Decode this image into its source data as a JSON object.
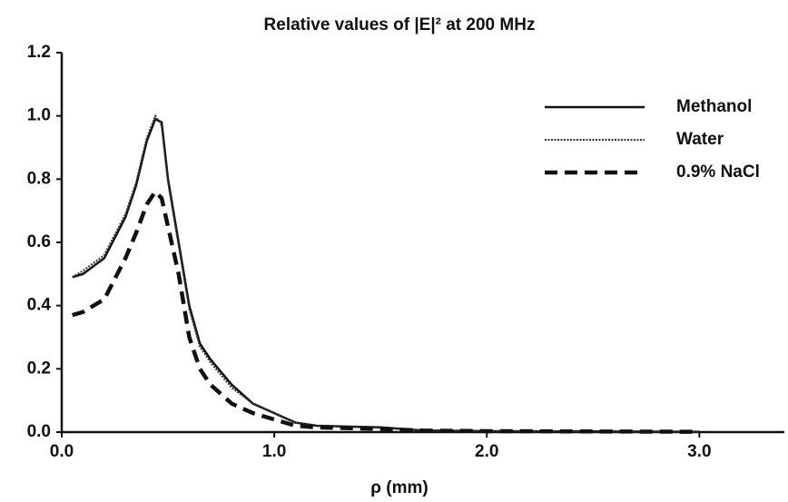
{
  "chart_data": {
    "type": "line",
    "title": "Relative values of |E|² at 200 MHz",
    "xlabel": "ρ (mm)",
    "x": [
      0.05,
      0.1,
      0.2,
      0.3,
      0.35,
      0.4,
      0.44,
      0.47,
      0.5,
      0.55,
      0.6,
      0.65,
      0.7,
      0.8,
      0.9,
      1.0,
      1.1,
      1.2,
      1.5,
      1.7,
      2.0,
      2.5,
      3.0
    ],
    "series": [
      {
        "name": "Methanol",
        "color": "#111111",
        "line_style": "solid",
        "values": [
          0.49,
          0.5,
          0.55,
          0.68,
          0.78,
          0.92,
          0.99,
          0.98,
          0.8,
          0.6,
          0.4,
          0.28,
          0.23,
          0.15,
          0.09,
          0.06,
          0.03,
          0.02,
          0.015,
          0.005,
          0.003,
          0.002,
          0.001
        ]
      },
      {
        "name": "Water",
        "color": "#333333",
        "line_style": "dotted",
        "values": [
          0.49,
          0.51,
          0.56,
          0.69,
          0.79,
          0.93,
          1.0,
          0.97,
          0.79,
          0.59,
          0.39,
          0.27,
          0.22,
          0.14,
          0.09,
          0.06,
          0.03,
          0.02,
          0.015,
          0.005,
          0.003,
          0.002,
          0.001
        ]
      },
      {
        "name": "0.9% NaCl",
        "color": "#111111",
        "line_style": "dashed",
        "values": [
          0.37,
          0.38,
          0.42,
          0.55,
          0.63,
          0.72,
          0.76,
          0.74,
          0.65,
          0.5,
          0.3,
          0.2,
          0.15,
          0.09,
          0.06,
          0.04,
          0.02,
          0.015,
          0.01,
          0.005,
          0.003,
          0.002,
          0.001
        ]
      }
    ],
    "xlim": [
      0,
      3.4
    ],
    "xticks": [
      {
        "value": 0,
        "label": "0.0"
      },
      {
        "value": 1,
        "label": "1.0"
      },
      {
        "value": 2,
        "label": "2.0"
      },
      {
        "value": 3,
        "label": "3.0"
      }
    ],
    "ylim": [
      0,
      1.2
    ],
    "yticks": [
      {
        "value": 0,
        "label": "0.0"
      },
      0.2,
      0.4,
      0.6,
      0.8,
      {
        "value": 1,
        "label": "1.0"
      },
      1.2
    ],
    "grid": false,
    "legend": "upper right"
  }
}
